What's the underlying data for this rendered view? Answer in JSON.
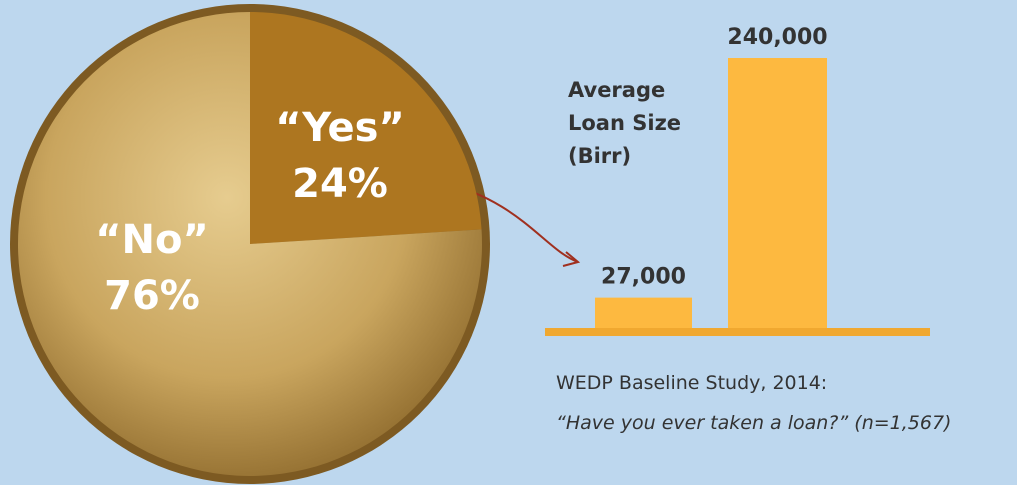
{
  "chart_data": [
    {
      "type": "pie",
      "categories": [
        "“Yes”",
        "“No”"
      ],
      "values": [
        24,
        76
      ],
      "value_labels": [
        "24%",
        "76%"
      ],
      "colors": [
        "#ad7620",
        "#c9a55e"
      ]
    },
    {
      "type": "bar",
      "title": "Average Loan Size (Birr)",
      "categories": [
        null,
        null
      ],
      "values": [
        27000,
        240000
      ],
      "value_labels": [
        "27,000",
        "240,000"
      ],
      "color": "#fdb940",
      "ylim": [
        0,
        240000
      ]
    }
  ],
  "footnote": [
    "WEDP Baseline Study, 2014:",
    "“Have you ever taken a loan?” (n=1,567)"
  ]
}
